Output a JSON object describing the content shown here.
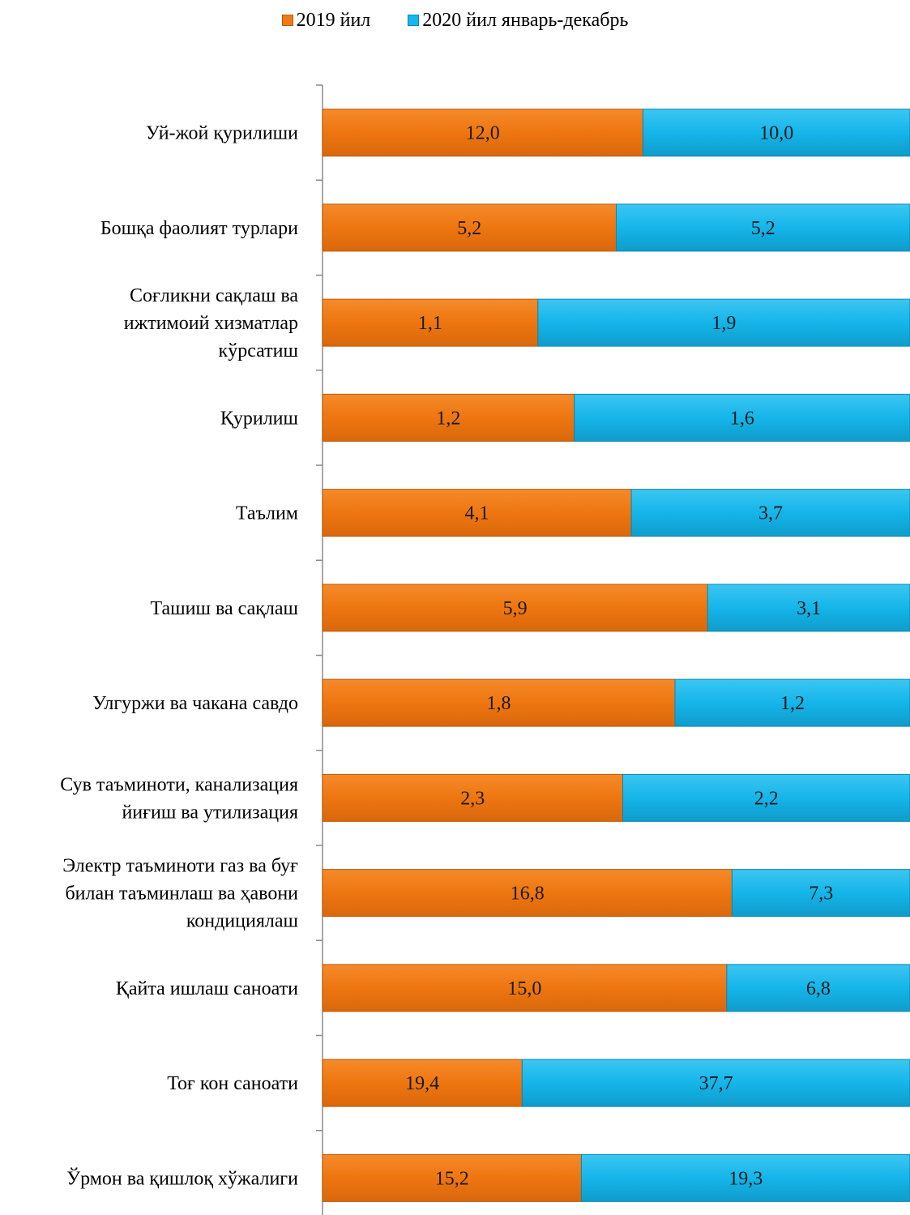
{
  "chart_data": {
    "type": "bar",
    "orientation": "horizontal",
    "stacked": "100%",
    "categories": [
      "Уй-жой қурилиши",
      "Бошқа фаолият турлари",
      "Соғликни сақлаш ва ижтимоий хизматлар кўрсатиш",
      "Қурилиш",
      "Таълим",
      "Ташиш ва сақлаш",
      "Улгуржи ва чакана савдо",
      "Сув таъминоти, канализация йиғиш ва утилизация",
      "Электр таъминоти газ ва буғ билан таъминлаш ва ҳавони кондициялаш",
      "Қайта ишлаш саноати",
      "Тоғ кон саноати",
      "Ўрмон ва қишлоқ хўжалиги"
    ],
    "category_lines": [
      [
        "Уй-жой қурилиши"
      ],
      [
        "Бошқа фаолият турлари"
      ],
      [
        "Соғликни сақлаш ва",
        "ижтимоий хизматлар",
        "кўрсатиш"
      ],
      [
        "Қурилиш"
      ],
      [
        "Таълим"
      ],
      [
        "Ташиш ва сақлаш"
      ],
      [
        "Улгуржи ва чакана савдо"
      ],
      [
        "Сув таъминоти, канализация",
        "йиғиш ва утилизация"
      ],
      [
        "Электр таъминоти газ ва буғ",
        "билан таъминлаш ва ҳавони",
        "кондициялаш"
      ],
      [
        "Қайта ишлаш саноати"
      ],
      [
        "Тоғ кон саноати"
      ],
      [
        "Ўрмон ва қишлоқ хўжалиги"
      ]
    ],
    "series": [
      {
        "name": "2019 йил",
        "color": "#F07A16",
        "values": [
          12.0,
          5.2,
          1.1,
          1.2,
          4.1,
          5.9,
          1.8,
          2.3,
          16.8,
          15.0,
          19.4,
          15.2
        ],
        "labels": [
          "12,0",
          "5,2",
          "1,1",
          "1,2",
          "4,1",
          "5,9",
          "1,8",
          "2,3",
          "16,8",
          "15,0",
          "19,4",
          "15,2"
        ]
      },
      {
        "name": "2020 йил январь-декабрь",
        "color": "#16B7EC",
        "values": [
          10.0,
          5.2,
          1.9,
          1.6,
          3.7,
          3.1,
          1.2,
          2.2,
          7.3,
          6.8,
          37.7,
          19.3
        ],
        "labels": [
          "10,0",
          "5,2",
          "1,9",
          "1,6",
          "3,7",
          "3,1",
          "1,2",
          "2,2",
          "7,3",
          "6,8",
          "37,7",
          "19,3"
        ]
      }
    ],
    "legend_position": "top-center",
    "grid": false
  }
}
